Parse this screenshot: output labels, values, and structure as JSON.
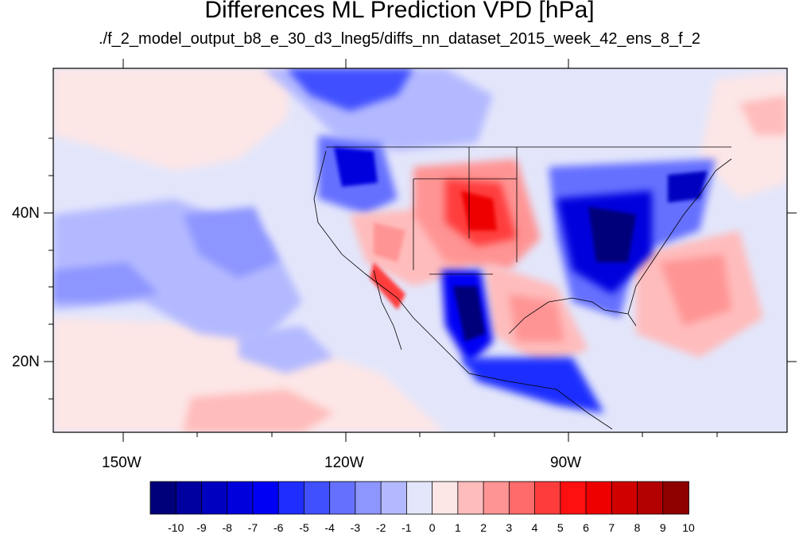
{
  "title": "Differences ML Prediction VPD [hPa]",
  "subtitle": "./f_2_model_output_b8_e_30_d3_lneg5/diffs_nn_dataset_2015_week_42_ens_8_f_2",
  "lat_labels": [
    "40N",
    "20N"
  ],
  "lon_labels": [
    "150W",
    "120W",
    "90W"
  ],
  "colorbar": {
    "labels": [
      "-10",
      "-9",
      "-8",
      "-7",
      "-6",
      "-5",
      "-4",
      "-3",
      "-2",
      "-1",
      "0",
      "1",
      "2",
      "3",
      "4",
      "5",
      "6",
      "7",
      "8",
      "9",
      "10"
    ],
    "colors": [
      "#00007a",
      "#0000a0",
      "#0000c0",
      "#0000dd",
      "#0000f5",
      "#1f2dff",
      "#4150ff",
      "#6570ff",
      "#8d95ff",
      "#b4b9ff",
      "#e3e6fb",
      "#fde6e6",
      "#ffbcbc",
      "#ff9494",
      "#ff6a6a",
      "#ff3c3c",
      "#ff1010",
      "#ee0000",
      "#d10000",
      "#b30000",
      "#8e0000"
    ]
  }
}
